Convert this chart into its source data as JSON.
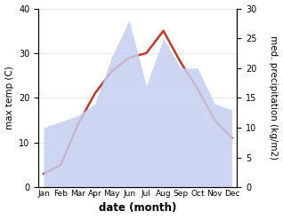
{
  "months": [
    "Jan",
    "Feb",
    "Mar",
    "Apr",
    "May",
    "Jun",
    "Jul",
    "Aug",
    "Sep",
    "Oct",
    "Nov",
    "Dec"
  ],
  "temperature": [
    3,
    5,
    14,
    21,
    26,
    29,
    30,
    35,
    28,
    22,
    15,
    11
  ],
  "precipitation": [
    10,
    11,
    12,
    14,
    22,
    28,
    17,
    25,
    20,
    20,
    14,
    13
  ],
  "temp_color": "#c0392b",
  "precip_fill_color": "#c5cef0",
  "left_ylabel": "max temp (C)",
  "right_ylabel": "med. precipitation (kg/m2)",
  "xlabel": "date (month)",
  "ylim_left": [
    0,
    40
  ],
  "ylim_right": [
    0,
    30
  ],
  "left_yticks": [
    0,
    10,
    20,
    30,
    40
  ],
  "right_yticks": [
    0,
    5,
    10,
    15,
    20,
    25,
    30
  ]
}
